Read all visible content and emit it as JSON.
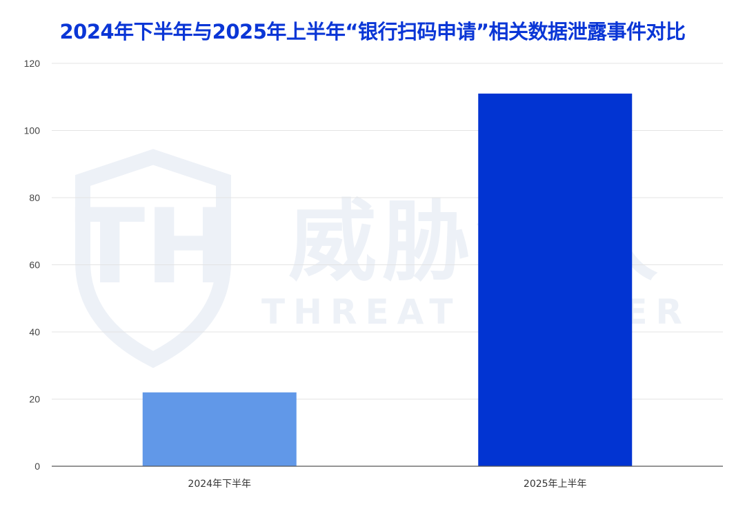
{
  "title": "2024年下半年与2025年上半年“银行扫码申请”相关数据泄露事件对比",
  "colors": {
    "title": "#0a36d6",
    "grid": "#e3e3e3",
    "axis": "#555555",
    "watermark": "#edf1f7"
  },
  "watermark": {
    "brand_cn": "威胁猎人",
    "brand_en": "THREAT HUNTER",
    "logo_letters": "TH"
  },
  "chart_data": {
    "type": "bar",
    "title": "2024年下半年与2025年上半年“银行扫码申请”相关数据泄露事件对比",
    "xlabel": "",
    "ylabel": "",
    "categories": [
      "2024年下半年",
      "2025年上半年"
    ],
    "values": [
      22,
      111
    ],
    "bar_colors": [
      "#6198e8",
      "#0234d2"
    ],
    "ylim": [
      0,
      120
    ],
    "yticks": [
      0,
      20,
      40,
      60,
      80,
      100,
      120
    ],
    "grid": true,
    "legend": "none"
  }
}
